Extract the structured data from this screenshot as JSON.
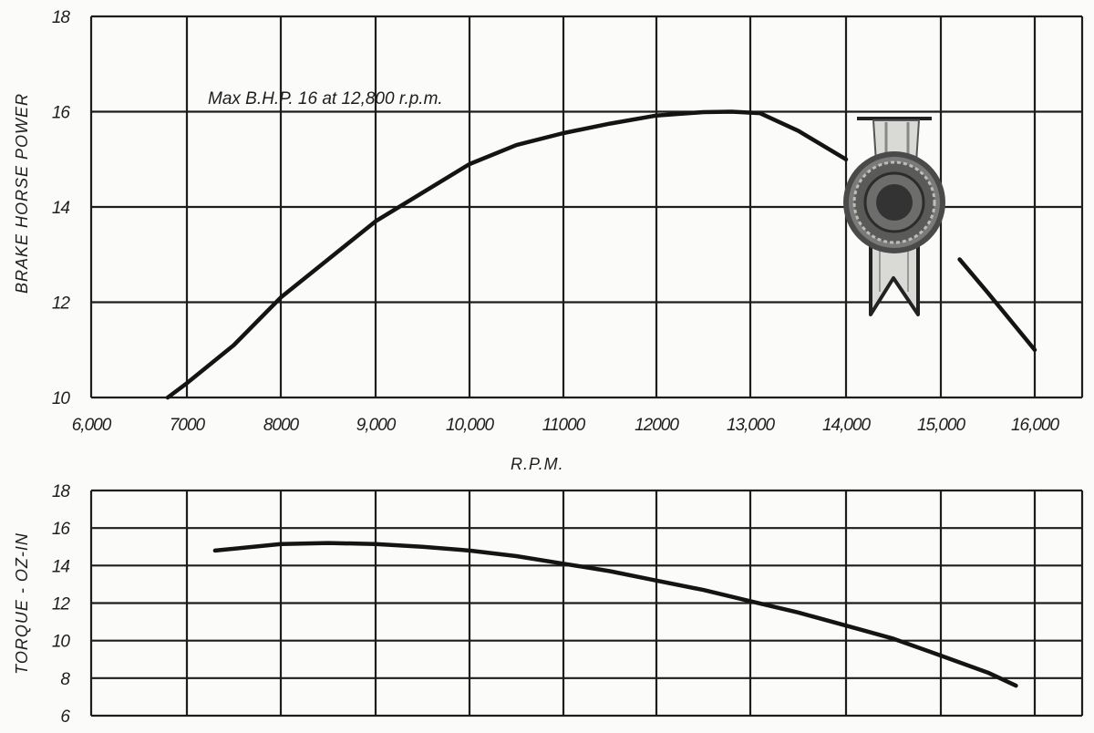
{
  "chart_data": [
    {
      "type": "line",
      "title": "",
      "xlabel": "R.P.M.",
      "ylabel": "BRAKE HORSE POWER",
      "xlim": [
        6000,
        16000
      ],
      "ylim": [
        10,
        18
      ],
      "x_ticks": [
        6000,
        7000,
        8000,
        9000,
        10000,
        11000,
        12000,
        13000,
        14000,
        15000,
        16000
      ],
      "x_tick_labels": [
        "6,000",
        "7000",
        "8000",
        "9,000",
        "10,000",
        "11000",
        "12000",
        "13,000",
        "14,000",
        "15,000",
        "16,000"
      ],
      "y_ticks": [
        10,
        12,
        14,
        16,
        18
      ],
      "y_tick_labels": [
        "10",
        "12",
        "14",
        "16",
        "18"
      ],
      "grid": true,
      "annotation": "Max B.H.P. 16 at 12,800 r.p.m.",
      "series": [
        {
          "x": [
            6800,
            7000,
            7500,
            8000,
            8500,
            9000,
            9500,
            10000,
            10500,
            11000,
            11500,
            12000,
            12500,
            12800,
            13100,
            13500,
            14000,
            15200,
            15500,
            16000
          ],
          "y": [
            10.0,
            10.3,
            11.1,
            12.1,
            12.9,
            13.7,
            14.3,
            14.9,
            15.3,
            15.55,
            15.75,
            15.92,
            15.99,
            16.0,
            15.97,
            15.6,
            15.0,
            12.9,
            12.2,
            11.0
          ],
          "gap_after_index": [
            16
          ]
        }
      ],
      "line_color": "#141414"
    },
    {
      "type": "line",
      "title": "",
      "xlabel": "",
      "ylabel": "TORQUE - OZ-IN",
      "xlim": [
        6000,
        16000
      ],
      "ylim": [
        6,
        18
      ],
      "y_ticks": [
        6,
        8,
        10,
        12,
        14,
        16,
        18
      ],
      "y_tick_labels": [
        "6",
        "8",
        "10",
        "12",
        "14",
        "16",
        "18"
      ],
      "grid": true,
      "series": [
        {
          "x": [
            7300,
            8000,
            8500,
            9000,
            9500,
            10000,
            10500,
            11000,
            11500,
            12000,
            12500,
            13000,
            13500,
            14000,
            14500,
            15000,
            15500,
            15800
          ],
          "y": [
            14.8,
            15.15,
            15.2,
            15.15,
            15.0,
            14.8,
            14.5,
            14.1,
            13.7,
            13.2,
            12.7,
            12.1,
            11.5,
            10.8,
            10.1,
            9.2,
            8.3,
            7.6
          ]
        }
      ],
      "line_color": "#141414"
    }
  ],
  "badge": {
    "icon": "award-rosette-icon"
  }
}
